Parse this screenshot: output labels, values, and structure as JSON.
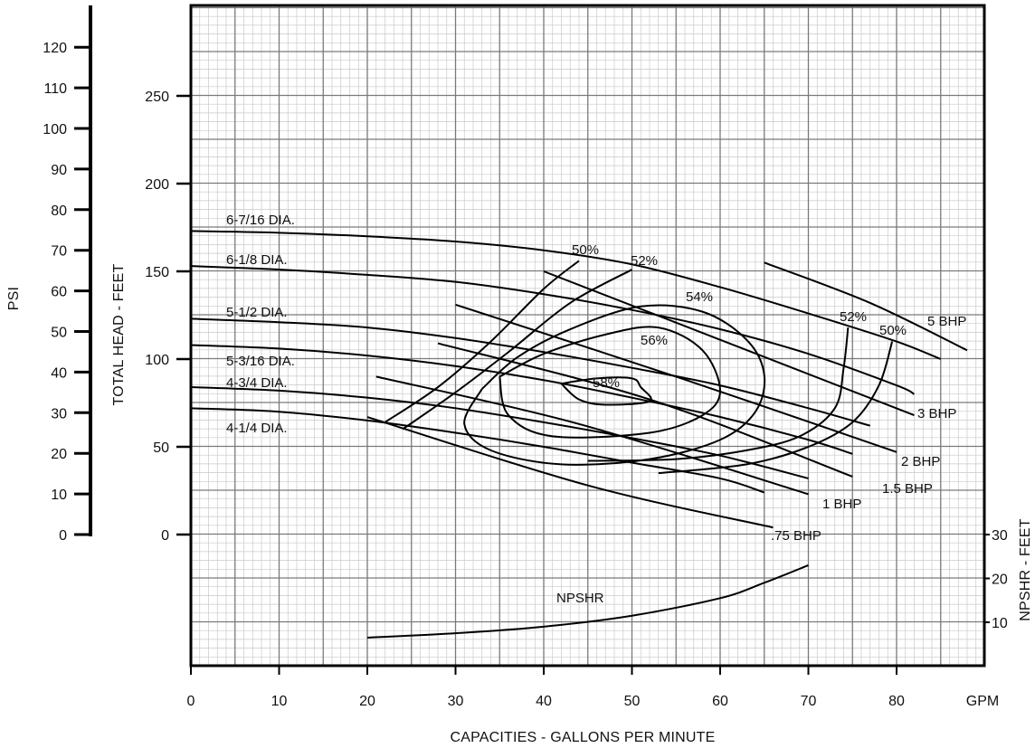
{
  "chart_data": {
    "type": "line",
    "title": "",
    "xlabel": "CAPACITIES - GALLONS PER MINUTE",
    "x_unit_label": "GPM",
    "ylabel": "TOTAL HEAD - FEET",
    "psi_label": "PSI",
    "npshr_axis_label": "NPSHR - FEET",
    "xlim": [
      0,
      90
    ],
    "ylim": [
      -75,
      300
    ],
    "x_ticks": [
      "0",
      "10",
      "20",
      "30",
      "40",
      "50",
      "60",
      "70",
      "80"
    ],
    "y_ticks": [
      "0",
      "50",
      "100",
      "150",
      "200",
      "250"
    ],
    "psi_ticks": [
      "0",
      "10",
      "20",
      "30",
      "40",
      "50",
      "60",
      "70",
      "80",
      "90",
      "100",
      "110",
      "120"
    ],
    "npshr_ticks": [
      "10",
      "20",
      "30"
    ],
    "grid": true,
    "diameter_curves": [
      {
        "name": "6-7/16 DIA.",
        "points": [
          [
            0,
            173
          ],
          [
            10,
            172
          ],
          [
            20,
            170
          ],
          [
            30,
            167
          ],
          [
            40,
            162
          ],
          [
            50,
            154
          ],
          [
            60,
            141
          ],
          [
            70,
            126
          ],
          [
            80,
            110
          ],
          [
            85,
            100
          ]
        ]
      },
      {
        "name": "6-1/8 DIA.",
        "points": [
          [
            0,
            153
          ],
          [
            10,
            151
          ],
          [
            20,
            148
          ],
          [
            30,
            144
          ],
          [
            40,
            137
          ],
          [
            50,
            128
          ],
          [
            60,
            117
          ],
          [
            70,
            103
          ],
          [
            80,
            85
          ],
          [
            82,
            80
          ]
        ]
      },
      {
        "name": "5-1/2 DIA.",
        "points": [
          [
            0,
            123
          ],
          [
            10,
            121
          ],
          [
            20,
            118
          ],
          [
            30,
            112
          ],
          [
            40,
            104
          ],
          [
            50,
            95
          ],
          [
            60,
            85
          ],
          [
            70,
            72
          ],
          [
            77,
            62
          ]
        ]
      },
      {
        "name": "5-3/16 DIA.",
        "points": [
          [
            0,
            108
          ],
          [
            10,
            106
          ],
          [
            20,
            102
          ],
          [
            30,
            96
          ],
          [
            40,
            88
          ],
          [
            50,
            78
          ],
          [
            60,
            67
          ],
          [
            70,
            54
          ],
          [
            75,
            46
          ]
        ]
      },
      {
        "name": "4-3/4 DIA.",
        "points": [
          [
            0,
            84
          ],
          [
            10,
            82
          ],
          [
            20,
            78
          ],
          [
            30,
            72
          ],
          [
            40,
            64
          ],
          [
            50,
            55
          ],
          [
            60,
            45
          ],
          [
            70,
            32
          ]
        ]
      },
      {
        "name": "4-1/4 DIA.",
        "points": [
          [
            0,
            72
          ],
          [
            10,
            70
          ],
          [
            20,
            65
          ],
          [
            30,
            58
          ],
          [
            40,
            50
          ],
          [
            50,
            41
          ],
          [
            60,
            32
          ],
          [
            65,
            24
          ]
        ]
      }
    ],
    "efficiency_curves": [
      {
        "name": "50%",
        "points": [
          [
            22,
            64
          ],
          [
            28,
            84
          ],
          [
            34,
            110
          ],
          [
            40,
            140
          ],
          [
            44,
            156
          ]
        ]
      },
      {
        "name": "52%",
        "points": [
          [
            24,
            60
          ],
          [
            30,
            81
          ],
          [
            36,
            104
          ],
          [
            43,
            132
          ],
          [
            50,
            151
          ]
        ]
      },
      {
        "name": "54%",
        "points": [
          [
            33,
            83
          ],
          [
            37,
            101
          ],
          [
            43,
            117
          ],
          [
            51,
            130
          ],
          [
            58,
            127
          ],
          [
            63,
            111
          ],
          [
            65,
            91
          ],
          [
            64,
            70
          ],
          [
            60,
            54
          ],
          [
            52,
            43
          ],
          [
            42,
            40
          ],
          [
            34,
            48
          ],
          [
            31,
            63
          ],
          [
            33,
            83
          ]
        ]
      },
      {
        "name": "56%",
        "points": [
          [
            35,
            90
          ],
          [
            40,
            103
          ],
          [
            47,
            114
          ],
          [
            53,
            118
          ],
          [
            58,
            105
          ],
          [
            60,
            82
          ],
          [
            58,
            68
          ],
          [
            52,
            58
          ],
          [
            41,
            56
          ],
          [
            36,
            68
          ],
          [
            35,
            90
          ]
        ]
      },
      {
        "name": "58%",
        "points": [
          [
            42,
            86
          ],
          [
            46,
            89
          ],
          [
            50,
            89
          ],
          [
            51,
            84
          ],
          [
            52,
            76
          ],
          [
            47,
            74
          ],
          [
            44,
            77
          ],
          [
            42,
            86
          ]
        ]
      },
      {
        "name": "52%",
        "points": [
          [
            45,
            42
          ],
          [
            55,
            43
          ],
          [
            63,
            48
          ],
          [
            69,
            56
          ],
          [
            73,
            72
          ],
          [
            74,
            95
          ],
          [
            74.5,
            118
          ]
        ]
      },
      {
        "name": "50%",
        "points": [
          [
            53,
            35
          ],
          [
            63,
            40
          ],
          [
            70,
            50
          ],
          [
            75,
            64
          ],
          [
            78,
            85
          ],
          [
            79.5,
            110
          ]
        ]
      }
    ],
    "bhp_curves": [
      {
        "name": "5 BHP",
        "points": [
          [
            65,
            155
          ],
          [
            77,
            132
          ],
          [
            88,
            105
          ]
        ]
      },
      {
        "name": "3 BHP",
        "points": [
          [
            40,
            150
          ],
          [
            60,
            111
          ],
          [
            82,
            68
          ]
        ]
      },
      {
        "name": "2 BHP",
        "points": [
          [
            30,
            131
          ],
          [
            55,
            90
          ],
          [
            80,
            47
          ]
        ]
      },
      {
        "name": "1.5 BHP",
        "points": [
          [
            28,
            109
          ],
          [
            52,
            77
          ],
          [
            75,
            33
          ]
        ]
      },
      {
        "name": "1 BHP",
        "points": [
          [
            21,
            90
          ],
          [
            44,
            63
          ],
          [
            70,
            23
          ]
        ]
      },
      {
        "name": ".75 BHP",
        "points": [
          [
            20,
            67
          ],
          [
            45,
            28
          ],
          [
            66,
            4
          ]
        ]
      }
    ],
    "npshr_curve": {
      "name": "NPSHR",
      "points_feet": [
        [
          20,
          6.5
        ],
        [
          30,
          7.5
        ],
        [
          40,
          9
        ],
        [
          50,
          11.5
        ],
        [
          60,
          15.5
        ],
        [
          65,
          19
        ],
        [
          70,
          23
        ]
      ]
    },
    "labels": {
      "d1": "6-7/16 DIA.",
      "d2": "6-1/8 DIA.",
      "d3": "5-1/2 DIA.",
      "d4": "5-3/16 DIA.",
      "d5": "4-3/4 DIA.",
      "d6": "4-1/4 DIA.",
      "e50a": "50%",
      "e52a": "52%",
      "e54": "54%",
      "e56": "56%",
      "e58": "58%",
      "e52b": "52%",
      "e50b": "50%",
      "b5": "5 BHP",
      "b3": "3 BHP",
      "b2": "2 BHP",
      "b15": "1.5 BHP",
      "b1": "1 BHP",
      "b075": ".75 BHP",
      "npshr": "NPSHR"
    }
  }
}
